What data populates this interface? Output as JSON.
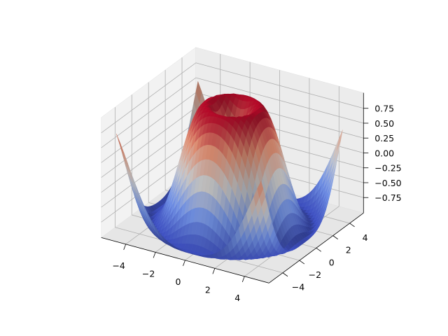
{
  "chart_data": {
    "type": "surface",
    "title": "",
    "xlabel": "",
    "ylabel": "",
    "zlabel": "",
    "function": "z = sin(sqrt(x^2 + y^2))",
    "x": {
      "min": -5,
      "max": 5,
      "step": 0.25
    },
    "y": {
      "min": -5,
      "max": 5,
      "step": 0.25
    },
    "zlim": [
      -1.01,
      1.01
    ],
    "x_ticks": [
      "−4",
      "−2",
      "0",
      "2",
      "4"
    ],
    "x_tick_values": [
      -4,
      -2,
      0,
      2,
      4
    ],
    "y_ticks": [
      "−4",
      "−2",
      "0",
      "2",
      "4"
    ],
    "y_tick_values": [
      -4,
      -2,
      0,
      2,
      4
    ],
    "z_ticks": [
      "−0.75",
      "−0.50",
      "−0.25",
      "0.00",
      "0.25",
      "0.50",
      "0.75"
    ],
    "z_tick_values": [
      -0.75,
      -0.5,
      -0.25,
      0,
      0.25,
      0.5,
      0.75
    ],
    "colormap": "coolwarm",
    "grid": true,
    "view": {
      "elevation": 30,
      "azimuth": -60
    },
    "colors": {
      "pane": "#f2f2f2",
      "pane_floor": "#e6e6e6",
      "grid": "#b0b0b0"
    }
  }
}
